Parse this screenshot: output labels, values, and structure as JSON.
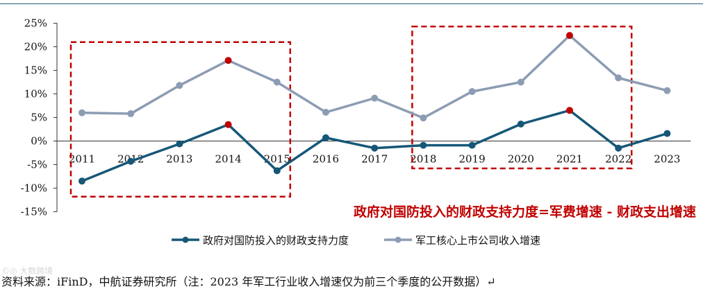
{
  "chart_data": {
    "type": "line",
    "x": [
      "2011",
      "2012",
      "2013",
      "2014",
      "2015",
      "2016",
      "2017",
      "2018",
      "2019",
      "2020",
      "2021",
      "2022",
      "2023"
    ],
    "y_ticks": [
      "25%",
      "20%",
      "15%",
      "10%",
      "5%",
      "0%",
      "-5%",
      "-10%",
      "-15%"
    ],
    "ylim": [
      -15,
      25
    ],
    "series": [
      {
        "name": "政府对国防投入的财政支持力度",
        "color": "#165777",
        "values": [
          -8.5,
          -4.3,
          -0.6,
          3.5,
          -6.3,
          0.7,
          -1.5,
          -0.9,
          -0.9,
          3.6,
          6.5,
          -1.5,
          1.6
        ]
      },
      {
        "name": "军工核心上市公司收入增速",
        "color": "#8c9cb3",
        "values": [
          6.0,
          5.8,
          11.8,
          17.1,
          12.5,
          6.1,
          9.1,
          4.9,
          10.5,
          12.5,
          22.4,
          13.4,
          10.7
        ]
      }
    ],
    "highlight_points": [
      {
        "series": 0,
        "x": "2014"
      },
      {
        "series": 1,
        "x": "2014"
      },
      {
        "series": 0,
        "x": "2021"
      },
      {
        "series": 1,
        "x": "2021"
      }
    ],
    "highlight_color": "#c00000",
    "highlight_boxes": [
      {
        "from": "2011",
        "to": "2015",
        "ymin": -11.8,
        "ymax": 21.0
      },
      {
        "from": "2018",
        "to": "2022",
        "ymin": -5.8,
        "ymax": 24.3
      }
    ],
    "annotation": "政府对国防投入的财政支持力度=军费增速 - 财政支出增速",
    "annotation_color": "#c00000",
    "legend_position": "bottom-center",
    "grid": false
  },
  "source": "资料来源：iFinD，中航证券研究所（注：2023 年军工行业收入增速仅为前三个季度的公开数据）↵",
  "watermark": "©◎ 大数跨境"
}
